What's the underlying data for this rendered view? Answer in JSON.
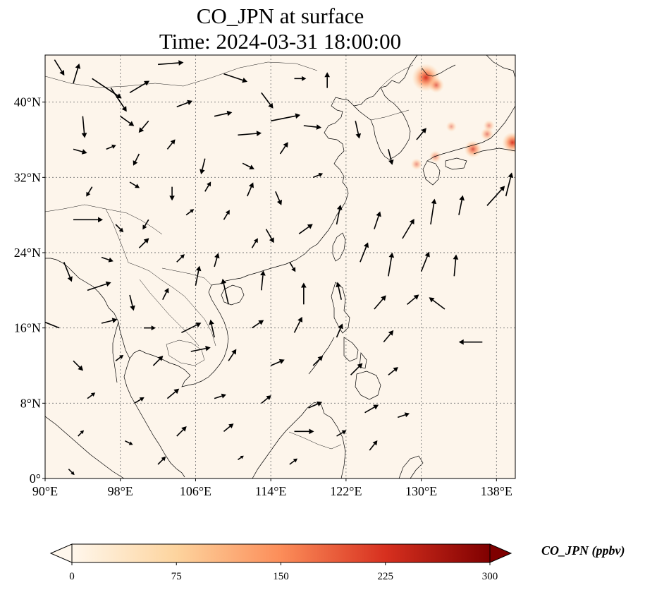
{
  "figure": {
    "title_line1": "CO_JPN at surface",
    "title_line2": "Time: 2024-03-31 18:00:00",
    "colorbar_label": "CO_JPN (ppbv)"
  },
  "map": {
    "lon_range": [
      90,
      140
    ],
    "lat_range": [
      0,
      45
    ],
    "x_ticks": [
      {
        "value": 90,
        "label": "90°E"
      },
      {
        "value": 98,
        "label": "98°E"
      },
      {
        "value": 106,
        "label": "106°E"
      },
      {
        "value": 114,
        "label": "114°E"
      },
      {
        "value": 122,
        "label": "122°E"
      },
      {
        "value": 130,
        "label": "130°E"
      },
      {
        "value": 138,
        "label": "138°E"
      }
    ],
    "y_ticks": [
      {
        "value": 0,
        "label": "0°"
      },
      {
        "value": 8,
        "label": "8°N"
      },
      {
        "value": 16,
        "label": "16°N"
      },
      {
        "value": 24,
        "label": "24°N"
      },
      {
        "value": 32,
        "label": "32°N"
      },
      {
        "value": 40,
        "label": "40°N"
      }
    ],
    "gridlines": true,
    "colors": {
      "background": "#fdf5eb",
      "coast": "#000000",
      "grid": "#777777",
      "arrow": "#000000"
    }
  },
  "colorbar": {
    "min": 0,
    "max": 300,
    "ticks": [
      0,
      75,
      150,
      225,
      300
    ],
    "colormap": "OrRd",
    "extend": "both",
    "stops": [
      "#fff7ec",
      "#fdd49e",
      "#fc8d59",
      "#d7301f",
      "#7f0000"
    ]
  },
  "co_hotspots": [
    {
      "lon": 130.5,
      "lat": 42.6,
      "value": 300
    },
    {
      "lon": 131.6,
      "lat": 41.8,
      "value": 110
    },
    {
      "lon": 135.5,
      "lat": 35.0,
      "value": 140
    },
    {
      "lon": 139.7,
      "lat": 35.7,
      "value": 190
    },
    {
      "lon": 137.0,
      "lat": 36.6,
      "value": 70
    },
    {
      "lon": 131.5,
      "lat": 34.2,
      "value": 60
    },
    {
      "lon": 129.5,
      "lat": 33.4,
      "value": 50
    },
    {
      "lon": 133.2,
      "lat": 37.4,
      "value": 35
    },
    {
      "lon": 137.2,
      "lat": 37.5,
      "value": 45
    }
  ],
  "wind_vectors": [
    {
      "lon": 91.0,
      "lat": 44.5,
      "u": 0.5,
      "v": -0.8
    },
    {
      "lon": 93.0,
      "lat": 42.0,
      "u": 0.3,
      "v": 1.0
    },
    {
      "lon": 95.0,
      "lat": 42.5,
      "u": 1.5,
      "v": -1.0
    },
    {
      "lon": 97.0,
      "lat": 41.5,
      "u": 0.8,
      "v": -1.2
    },
    {
      "lon": 99.0,
      "lat": 41.0,
      "u": 1.0,
      "v": 0.6
    },
    {
      "lon": 102.0,
      "lat": 44.0,
      "u": 1.3,
      "v": 0.1
    },
    {
      "lon": 104.0,
      "lat": 45.0,
      "u": 0.0,
      "v": 0.7
    },
    {
      "lon": 109.0,
      "lat": 43.0,
      "u": 1.2,
      "v": -0.4
    },
    {
      "lon": 113.0,
      "lat": 41.0,
      "u": 0.6,
      "v": -0.8
    },
    {
      "lon": 116.5,
      "lat": 42.5,
      "u": 0.6,
      "v": 0.0
    },
    {
      "lon": 120.0,
      "lat": 41.5,
      "u": 0.0,
      "v": 0.8
    },
    {
      "lon": 94.0,
      "lat": 38.5,
      "u": 0.1,
      "v": -1.1
    },
    {
      "lon": 98.0,
      "lat": 38.5,
      "u": 0.7,
      "v": -0.5
    },
    {
      "lon": 101.0,
      "lat": 38.0,
      "u": -0.5,
      "v": -0.6
    },
    {
      "lon": 104.0,
      "lat": 39.5,
      "u": 0.8,
      "v": 0.3
    },
    {
      "lon": 108.0,
      "lat": 38.5,
      "u": 0.9,
      "v": 0.2
    },
    {
      "lon": 110.5,
      "lat": 36.5,
      "u": 1.2,
      "v": 0.1
    },
    {
      "lon": 114.0,
      "lat": 38.0,
      "u": 1.5,
      "v": 0.3
    },
    {
      "lon": 117.5,
      "lat": 37.5,
      "u": 0.9,
      "v": -0.1
    },
    {
      "lon": 123.0,
      "lat": 38.0,
      "u": 0.2,
      "v": -0.9
    },
    {
      "lon": 126.5,
      "lat": 35.0,
      "u": 0.2,
      "v": -0.8
    },
    {
      "lon": 129.5,
      "lat": 36.0,
      "u": 0.5,
      "v": 0.6
    },
    {
      "lon": 93.0,
      "lat": 35.0,
      "u": 0.7,
      "v": -0.2
    },
    {
      "lon": 96.5,
      "lat": 35.0,
      "u": 0.5,
      "v": 0.2
    },
    {
      "lon": 100.0,
      "lat": 34.5,
      "u": -0.3,
      "v": -0.6
    },
    {
      "lon": 103.0,
      "lat": 35.0,
      "u": 0.4,
      "v": 0.5
    },
    {
      "lon": 107.0,
      "lat": 34.0,
      "u": -0.2,
      "v": -0.8
    },
    {
      "lon": 111.0,
      "lat": 33.5,
      "u": 0.6,
      "v": -0.3
    },
    {
      "lon": 115.0,
      "lat": 34.5,
      "u": 0.4,
      "v": 0.6
    },
    {
      "lon": 118.5,
      "lat": 32.0,
      "u": 0.5,
      "v": 0.2
    },
    {
      "lon": 95.0,
      "lat": 31.0,
      "u": -0.3,
      "v": -0.5
    },
    {
      "lon": 99.0,
      "lat": 31.5,
      "u": 0.5,
      "v": -0.3
    },
    {
      "lon": 103.5,
      "lat": 31.0,
      "u": 0.0,
      "v": -0.7
    },
    {
      "lon": 107.0,
      "lat": 30.5,
      "u": 0.3,
      "v": 0.5
    },
    {
      "lon": 111.5,
      "lat": 30.0,
      "u": 0.3,
      "v": 0.7
    },
    {
      "lon": 114.5,
      "lat": 30.5,
      "u": 0.3,
      "v": -0.7
    },
    {
      "lon": 93.0,
      "lat": 27.5,
      "u": 1.5,
      "v": 0.0
    },
    {
      "lon": 97.5,
      "lat": 27.0,
      "u": 0.4,
      "v": -0.4
    },
    {
      "lon": 101.0,
      "lat": 27.5,
      "u": -0.3,
      "v": -0.5
    },
    {
      "lon": 105.0,
      "lat": 28.0,
      "u": 0.4,
      "v": 0.3
    },
    {
      "lon": 109.0,
      "lat": 27.5,
      "u": 0.3,
      "v": 0.5
    },
    {
      "lon": 113.5,
      "lat": 26.5,
      "u": 0.4,
      "v": -0.7
    },
    {
      "lon": 117.0,
      "lat": 26.0,
      "u": 0.7,
      "v": 0.5
    },
    {
      "lon": 121.0,
      "lat": 27.0,
      "u": 0.2,
      "v": 1.0
    },
    {
      "lon": 125.0,
      "lat": 26.5,
      "u": 0.3,
      "v": 0.9
    },
    {
      "lon": 128.0,
      "lat": 25.5,
      "u": 0.6,
      "v": 1.0
    },
    {
      "lon": 131.0,
      "lat": 27.0,
      "u": 0.2,
      "v": 1.3
    },
    {
      "lon": 134.0,
      "lat": 28.0,
      "u": 0.2,
      "v": 1.0
    },
    {
      "lon": 137.0,
      "lat": 29.0,
      "u": 0.9,
      "v": 1.0
    },
    {
      "lon": 139.0,
      "lat": 30.0,
      "u": 0.3,
      "v": 1.2
    },
    {
      "lon": 92.0,
      "lat": 23.0,
      "u": 0.4,
      "v": -1.0
    },
    {
      "lon": 96.0,
      "lat": 23.5,
      "u": 0.6,
      "v": -0.2
    },
    {
      "lon": 100.0,
      "lat": 24.5,
      "u": 0.5,
      "v": 0.5
    },
    {
      "lon": 104.0,
      "lat": 23.0,
      "u": 0.4,
      "v": 0.4
    },
    {
      "lon": 108.0,
      "lat": 22.5,
      "u": 0.2,
      "v": 0.7
    },
    {
      "lon": 112.0,
      "lat": 24.5,
      "u": 0.3,
      "v": 0.5
    },
    {
      "lon": 116.0,
      "lat": 23.0,
      "u": 0.3,
      "v": -0.5
    },
    {
      "lon": 123.5,
      "lat": 23.0,
      "u": 0.4,
      "v": 1.0
    },
    {
      "lon": 126.5,
      "lat": 21.5,
      "u": 0.2,
      "v": 1.2
    },
    {
      "lon": 130.0,
      "lat": 22.0,
      "u": 0.4,
      "v": 1.0
    },
    {
      "lon": 133.5,
      "lat": 21.5,
      "u": 0.1,
      "v": 1.1
    },
    {
      "lon": 94.5,
      "lat": 20.0,
      "u": 1.2,
      "v": 0.4
    },
    {
      "lon": 99.0,
      "lat": 19.5,
      "u": 0.2,
      "v": -0.8
    },
    {
      "lon": 102.5,
      "lat": 19.0,
      "u": 0.3,
      "v": 0.6
    },
    {
      "lon": 106.0,
      "lat": 20.5,
      "u": 0.2,
      "v": 1.0
    },
    {
      "lon": 109.5,
      "lat": 18.5,
      "u": -0.3,
      "v": 1.3
    },
    {
      "lon": 113.0,
      "lat": 20.0,
      "u": 0.1,
      "v": 1.0
    },
    {
      "lon": 117.5,
      "lat": 18.5,
      "u": 0.0,
      "v": 1.1
    },
    {
      "lon": 121.5,
      "lat": 19.0,
      "u": -0.2,
      "v": 0.9
    },
    {
      "lon": 125.0,
      "lat": 18.0,
      "u": 0.6,
      "v": 0.7
    },
    {
      "lon": 128.5,
      "lat": 18.5,
      "u": 0.6,
      "v": 0.5
    },
    {
      "lon": 132.5,
      "lat": 18.0,
      "u": -0.8,
      "v": 0.6
    },
    {
      "lon": 91.5,
      "lat": 16.0,
      "u": -1.0,
      "v": 0.4
    },
    {
      "lon": 96.0,
      "lat": 16.5,
      "u": 0.8,
      "v": 0.2
    },
    {
      "lon": 100.5,
      "lat": 16.0,
      "u": 0.6,
      "v": 0.0
    },
    {
      "lon": 104.5,
      "lat": 15.5,
      "u": 1.0,
      "v": 0.5
    },
    {
      "lon": 108.0,
      "lat": 15.0,
      "u": -0.2,
      "v": 0.9
    },
    {
      "lon": 112.0,
      "lat": 16.0,
      "u": 0.6,
      "v": 0.4
    },
    {
      "lon": 116.5,
      "lat": 15.5,
      "u": 0.4,
      "v": 0.8
    },
    {
      "lon": 121.0,
      "lat": 15.0,
      "u": 0.3,
      "v": 0.7
    },
    {
      "lon": 126.0,
      "lat": 14.5,
      "u": 0.5,
      "v": 0.6
    },
    {
      "lon": 136.5,
      "lat": 14.5,
      "u": -1.2,
      "v": 0.0
    },
    {
      "lon": 93.0,
      "lat": 12.5,
      "u": 0.5,
      "v": -0.5
    },
    {
      "lon": 97.5,
      "lat": 12.5,
      "u": 0.4,
      "v": 0.3
    },
    {
      "lon": 101.5,
      "lat": 12.0,
      "u": 0.5,
      "v": 0.5
    },
    {
      "lon": 105.5,
      "lat": 13.5,
      "u": 1.0,
      "v": 0.2
    },
    {
      "lon": 109.5,
      "lat": 12.5,
      "u": 0.4,
      "v": 0.6
    },
    {
      "lon": 114.0,
      "lat": 12.0,
      "u": 0.7,
      "v": 0.3
    },
    {
      "lon": 118.5,
      "lat": 12.0,
      "u": 0.5,
      "v": 0.5
    },
    {
      "lon": 122.5,
      "lat": 11.0,
      "u": 0.6,
      "v": 0.6
    },
    {
      "lon": 126.5,
      "lat": 11.0,
      "u": 0.5,
      "v": 0.4
    },
    {
      "lon": 94.5,
      "lat": 8.5,
      "u": 0.4,
      "v": 0.3
    },
    {
      "lon": 99.5,
      "lat": 8.0,
      "u": 0.5,
      "v": 0.3
    },
    {
      "lon": 103.0,
      "lat": 8.5,
      "u": 0.6,
      "v": 0.5
    },
    {
      "lon": 108.0,
      "lat": 8.5,
      "u": 0.6,
      "v": 0.2
    },
    {
      "lon": 113.0,
      "lat": 8.0,
      "u": 0.5,
      "v": 0.4
    },
    {
      "lon": 118.0,
      "lat": 7.5,
      "u": 0.7,
      "v": 0.3
    },
    {
      "lon": 124.0,
      "lat": 7.0,
      "u": 0.7,
      "v": 0.4
    },
    {
      "lon": 127.5,
      "lat": 6.5,
      "u": 0.6,
      "v": 0.2
    },
    {
      "lon": 93.5,
      "lat": 4.5,
      "u": 0.3,
      "v": 0.3
    },
    {
      "lon": 98.5,
      "lat": 4.0,
      "u": 0.4,
      "v": -0.2
    },
    {
      "lon": 104.0,
      "lat": 4.5,
      "u": 0.5,
      "v": 0.5
    },
    {
      "lon": 109.0,
      "lat": 5.0,
      "u": 0.5,
      "v": 0.4
    },
    {
      "lon": 116.5,
      "lat": 5.0,
      "u": 1.0,
      "v": 0.0
    },
    {
      "lon": 121.0,
      "lat": 4.5,
      "u": 0.5,
      "v": 0.3
    },
    {
      "lon": 124.5,
      "lat": 3.0,
      "u": 0.4,
      "v": 0.5
    },
    {
      "lon": 92.5,
      "lat": 1.0,
      "u": 0.3,
      "v": -0.3
    },
    {
      "lon": 102.0,
      "lat": 1.5,
      "u": 0.4,
      "v": 0.4
    },
    {
      "lon": 110.5,
      "lat": 2.0,
      "u": 0.3,
      "v": 0.2
    },
    {
      "lon": 116.0,
      "lat": 1.5,
      "u": 0.4,
      "v": 0.3
    }
  ]
}
